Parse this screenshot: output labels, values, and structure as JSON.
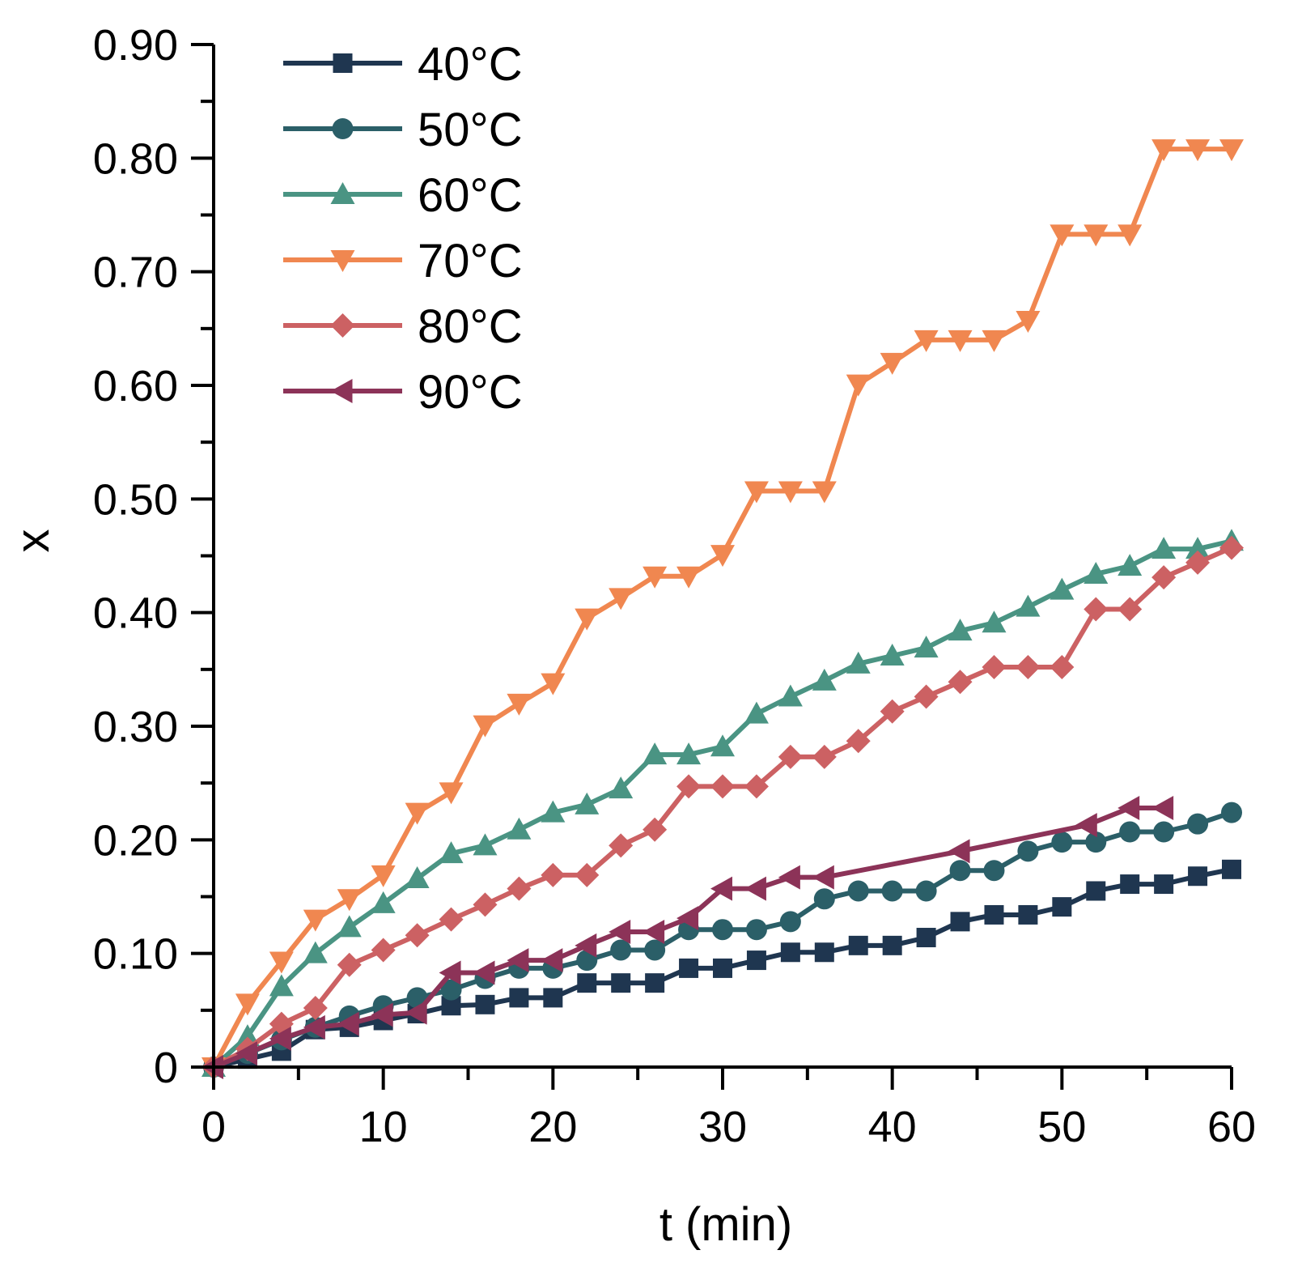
{
  "chart_data": {
    "type": "line",
    "title": "",
    "xlabel": "t (min)",
    "ylabel": "x",
    "xlim": [
      0,
      60
    ],
    "ylim": [
      0,
      0.9
    ],
    "xticks": [
      0,
      10,
      20,
      30,
      40,
      50,
      60
    ],
    "xtick_labels": [
      "0",
      "10",
      "20",
      "30",
      "40",
      "50",
      "60"
    ],
    "yticks": [
      0,
      0.1,
      0.2,
      0.3,
      0.4,
      0.5,
      0.6,
      0.7,
      0.8,
      0.9
    ],
    "ytick_labels": [
      "0",
      "0.10",
      "0.20",
      "0.30",
      "0.40",
      "0.50",
      "0.60",
      "0.70",
      "0.80",
      "0.90"
    ],
    "grid": false,
    "legend_position": "top-left",
    "series": [
      {
        "name": "40°C",
        "color": "#1f3650",
        "marker": "square",
        "x": [
          0,
          2,
          4,
          6,
          8,
          10,
          12,
          14,
          16,
          18,
          20,
          22,
          24,
          26,
          28,
          30,
          32,
          34,
          36,
          38,
          40,
          42,
          44,
          46,
          48,
          50,
          52,
          54,
          56,
          58,
          60
        ],
        "y": [
          0,
          0.007,
          0.014,
          0.033,
          0.035,
          0.041,
          0.047,
          0.054,
          0.055,
          0.061,
          0.061,
          0.074,
          0.074,
          0.074,
          0.087,
          0.087,
          0.094,
          0.101,
          0.101,
          0.107,
          0.107,
          0.114,
          0.128,
          0.134,
          0.134,
          0.141,
          0.155,
          0.161,
          0.161,
          0.168,
          0.174
        ]
      },
      {
        "name": "50°C",
        "color": "#2b5f68",
        "marker": "circle",
        "x": [
          0,
          2,
          4,
          6,
          8,
          10,
          12,
          14,
          16,
          18,
          20,
          22,
          24,
          26,
          28,
          30,
          32,
          34,
          36,
          38,
          40,
          42,
          44,
          46,
          48,
          50,
          52,
          54,
          56,
          58,
          60
        ],
        "y": [
          0,
          0.012,
          0.024,
          0.035,
          0.045,
          0.054,
          0.061,
          0.068,
          0.078,
          0.087,
          0.087,
          0.094,
          0.103,
          0.103,
          0.121,
          0.121,
          0.121,
          0.128,
          0.148,
          0.155,
          0.155,
          0.155,
          0.173,
          0.173,
          0.19,
          0.198,
          0.198,
          0.207,
          0.207,
          0.214,
          0.224
        ]
      },
      {
        "name": "60°C",
        "color": "#4a9483",
        "marker": "triangle-up",
        "x": [
          0,
          2,
          4,
          6,
          8,
          10,
          12,
          14,
          16,
          18,
          20,
          22,
          24,
          26,
          28,
          30,
          32,
          34,
          36,
          38,
          40,
          42,
          44,
          46,
          48,
          50,
          52,
          54,
          56,
          58,
          60
        ],
        "y": [
          0,
          0.027,
          0.071,
          0.1,
          0.123,
          0.144,
          0.166,
          0.188,
          0.195,
          0.209,
          0.224,
          0.231,
          0.245,
          0.275,
          0.275,
          0.282,
          0.311,
          0.326,
          0.34,
          0.355,
          0.362,
          0.369,
          0.384,
          0.391,
          0.405,
          0.42,
          0.434,
          0.441,
          0.456,
          0.456,
          0.463
        ]
      },
      {
        "name": "70°C",
        "color": "#f08750",
        "marker": "triangle-down",
        "x": [
          0,
          2,
          4,
          6,
          8,
          10,
          12,
          14,
          16,
          18,
          20,
          22,
          24,
          26,
          28,
          30,
          32,
          34,
          36,
          38,
          40,
          42,
          44,
          46,
          48,
          50,
          52,
          54,
          56,
          58,
          60
        ],
        "y": [
          0,
          0.056,
          0.093,
          0.13,
          0.148,
          0.169,
          0.224,
          0.242,
          0.301,
          0.32,
          0.338,
          0.395,
          0.413,
          0.432,
          0.432,
          0.451,
          0.507,
          0.507,
          0.507,
          0.601,
          0.62,
          0.64,
          0.64,
          0.64,
          0.657,
          0.733,
          0.733,
          0.733,
          0.808,
          0.808,
          0.808
        ]
      },
      {
        "name": "80°C",
        "color": "#cc6163",
        "marker": "diamond",
        "x": [
          0,
          2,
          4,
          6,
          8,
          10,
          12,
          14,
          16,
          18,
          20,
          22,
          24,
          26,
          28,
          30,
          32,
          34,
          36,
          38,
          40,
          42,
          44,
          46,
          48,
          50,
          52,
          54,
          56,
          58,
          60
        ],
        "y": [
          0,
          0.016,
          0.038,
          0.052,
          0.09,
          0.103,
          0.116,
          0.13,
          0.143,
          0.157,
          0.169,
          0.169,
          0.195,
          0.209,
          0.247,
          0.247,
          0.247,
          0.273,
          0.273,
          0.287,
          0.313,
          0.326,
          0.339,
          0.352,
          0.352,
          0.352,
          0.403,
          0.403,
          0.431,
          0.444,
          0.457
        ]
      },
      {
        "name": "90°C",
        "color": "#8c3358",
        "marker": "triangle-left",
        "x": [
          0,
          2,
          4,
          6,
          8,
          10,
          12,
          14,
          16,
          18,
          20,
          22,
          24,
          26,
          28,
          30,
          32,
          34,
          36,
          44,
          51.5,
          54,
          56
        ],
        "y": [
          0,
          0.012,
          0.025,
          0.035,
          0.038,
          0.046,
          0.048,
          0.083,
          0.083,
          0.094,
          0.094,
          0.107,
          0.119,
          0.119,
          0.131,
          0.157,
          0.157,
          0.167,
          0.167,
          0.19,
          0.213,
          0.228,
          0.228
        ]
      }
    ]
  }
}
